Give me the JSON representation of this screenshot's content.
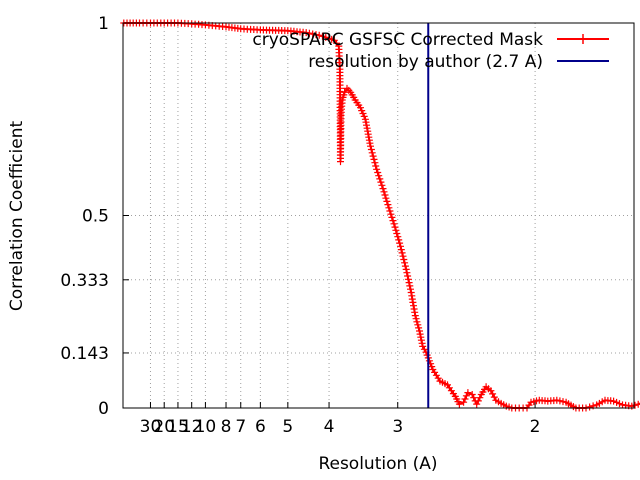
{
  "chart_data": {
    "type": "line",
    "title": "",
    "xlabel": "Resolution (A)",
    "ylabel": "Correlation Coefficient",
    "x_axis_quantity": "resolution in Angstrom, plotted on reciprocal (1/resolution) scale",
    "x_reciprocal_range": [
      0.0,
      0.62
    ],
    "ylim": [
      0,
      1
    ],
    "x_ticks": [
      "30",
      "20",
      "15",
      "12",
      "10",
      "8",
      "7",
      "6",
      "5",
      "4",
      "3",
      "2"
    ],
    "x_tick_values": [
      30,
      20,
      15,
      12,
      10,
      8,
      7,
      6,
      5,
      4,
      3,
      2
    ],
    "y_ticks": [
      "0",
      "0.143",
      "0.333",
      "0.5",
      "1"
    ],
    "y_tick_values": [
      0,
      0.143,
      0.333,
      0.5,
      1
    ],
    "grid": true,
    "legend_position": "top-right",
    "series": [
      {
        "name": "cryoSPARC GSFSC Corrected Mask",
        "color": "#ff0000",
        "marker": "plus",
        "points": [
          [
            1000,
            1.0
          ],
          [
            50,
            1.0
          ],
          [
            30,
            1.0
          ],
          [
            20,
            1.0
          ],
          [
            15,
            1.0
          ],
          [
            12,
            0.998
          ],
          [
            10,
            0.995
          ],
          [
            8,
            0.99
          ],
          [
            7,
            0.985
          ],
          [
            6,
            0.982
          ],
          [
            5,
            0.98
          ],
          [
            4.5,
            0.975
          ],
          [
            4.2,
            0.968
          ],
          [
            4.0,
            0.96
          ],
          [
            3.9,
            0.955
          ],
          [
            3.82,
            0.94
          ],
          [
            3.8,
            0.88
          ],
          [
            3.79,
            0.64
          ],
          [
            3.78,
            0.76
          ],
          [
            3.76,
            0.8
          ],
          [
            3.72,
            0.82
          ],
          [
            3.68,
            0.83
          ],
          [
            3.62,
            0.82
          ],
          [
            3.55,
            0.8
          ],
          [
            3.47,
            0.78
          ],
          [
            3.4,
            0.75
          ],
          [
            3.33,
            0.68
          ],
          [
            3.25,
            0.62
          ],
          [
            3.17,
            0.57
          ],
          [
            3.1,
            0.52
          ],
          [
            3.03,
            0.47
          ],
          [
            2.97,
            0.42
          ],
          [
            2.91,
            0.36
          ],
          [
            2.86,
            0.3
          ],
          [
            2.82,
            0.24
          ],
          [
            2.78,
            0.2
          ],
          [
            2.75,
            0.16
          ],
          [
            2.72,
            0.145
          ],
          [
            2.7,
            0.13
          ],
          [
            2.66,
            0.1
          ],
          [
            2.6,
            0.07
          ],
          [
            2.54,
            0.06
          ],
          [
            2.48,
            0.03
          ],
          [
            2.45,
            0.01
          ],
          [
            2.42,
            0.015
          ],
          [
            2.39,
            0.04
          ],
          [
            2.36,
            0.035
          ],
          [
            2.33,
            0.01
          ],
          [
            2.3,
            0.035
          ],
          [
            2.27,
            0.055
          ],
          [
            2.24,
            0.045
          ],
          [
            2.21,
            0.02
          ],
          [
            2.18,
            0.012
          ],
          [
            2.15,
            0.005
          ],
          [
            2.12,
            0.0
          ],
          [
            2.08,
            0.0
          ],
          [
            2.04,
            0.0
          ],
          [
            2.02,
            0.015
          ],
          [
            1.98,
            0.02
          ],
          [
            1.94,
            0.018
          ],
          [
            1.9,
            0.02
          ],
          [
            1.86,
            0.015
          ],
          [
            1.82,
            0.0
          ],
          [
            1.78,
            0.0
          ],
          [
            1.74,
            0.008
          ],
          [
            1.71,
            0.02
          ],
          [
            1.68,
            0.018
          ],
          [
            1.65,
            0.008
          ],
          [
            1.62,
            0.005
          ],
          [
            1.59,
            0.012
          ],
          [
            1.57,
            0.015
          ],
          [
            1.55,
            0.008
          ],
          [
            1.53,
            0.005
          ],
          [
            1.51,
            0.012
          ]
        ]
      },
      {
        "name": "resolution by author (2.7 A)",
        "color": "#00008b",
        "type": "vertical_line",
        "x": 2.7
      }
    ]
  }
}
